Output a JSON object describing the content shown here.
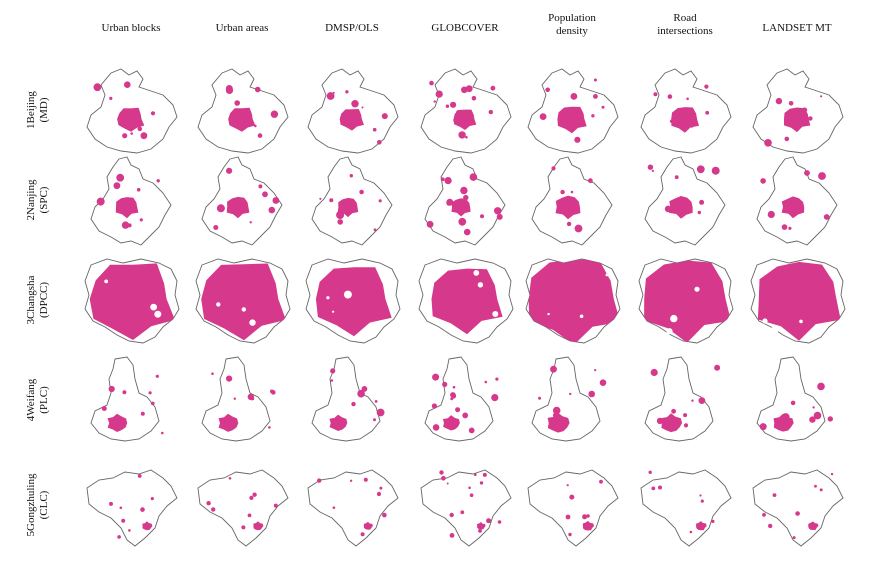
{
  "columns": [
    "Urban blocks",
    "Urban areas",
    "DMSP/OLS",
    "GLOBCOVER",
    "Population density",
    "Road intersections",
    "LANDSET MT"
  ],
  "column_header_lines": [
    [
      "Urban blocks"
    ],
    [
      "Urban areas"
    ],
    [
      "DMSP/OLS"
    ],
    [
      "GLOBCOVER"
    ],
    [
      "Population",
      "density"
    ],
    [
      "Road",
      "intersections"
    ],
    [
      "LANDSET MT"
    ]
  ],
  "rows": [
    {
      "line1": "1Beijing",
      "line2": "(MD)"
    },
    {
      "line1": "2Nanjing",
      "line2": "(SPC)"
    },
    {
      "line1": "3Changsha",
      "line2": "(DPCC)"
    },
    {
      "line1": "4Weifang",
      "line2": "(PLC)"
    },
    {
      "line1": "5Gongzhuling",
      "line2": "(CLC)"
    }
  ],
  "colors": {
    "urban_fill": "#d6388c",
    "boundary": "#666666",
    "background": "#ffffff"
  }
}
